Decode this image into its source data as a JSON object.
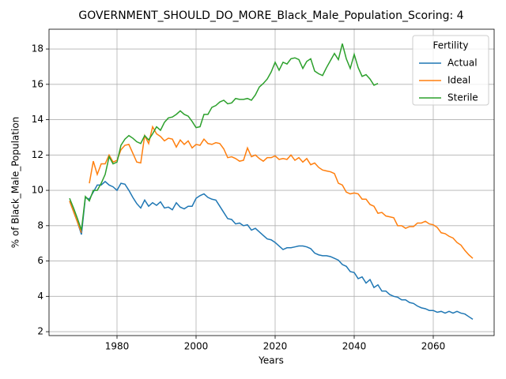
{
  "chart_data": {
    "type": "line",
    "title": "GOVERNMENT_SHOULD_DO_MORE_Black_Male_Population_Scoring: 4",
    "xlabel": "Years",
    "ylabel": "% of Black_Male_Population",
    "legend_title": "Fertility",
    "legend": "upper right",
    "grid": true,
    "xlim": [
      1962.8,
      2075.4
    ],
    "ylim": [
      1.78,
      19.12
    ],
    "xticks": [
      1980,
      2000,
      2020,
      2040,
      2060
    ],
    "yticks": [
      2,
      4,
      6,
      8,
      10,
      12,
      14,
      16,
      18
    ],
    "x": [
      1968,
      1969,
      1970,
      1971,
      1972,
      1973,
      1974,
      1975,
      1976,
      1977,
      1978,
      1979,
      1980,
      1981,
      1982,
      1983,
      1984,
      1985,
      1986,
      1987,
      1988,
      1989,
      1990,
      1991,
      1992,
      1993,
      1994,
      1995,
      1996,
      1997,
      1998,
      1999,
      2000,
      2001,
      2002,
      2003,
      2004,
      2005,
      2006,
      2007,
      2008,
      2009,
      2010,
      2011,
      2012,
      2013,
      2014,
      2015,
      2016,
      2017,
      2018,
      2019,
      2020,
      2021,
      2022,
      2023,
      2024,
      2025,
      2026,
      2027,
      2028,
      2029,
      2030,
      2031,
      2032,
      2033,
      2034,
      2035,
      2036,
      2037,
      2038,
      2039,
      2040,
      2041,
      2042,
      2043,
      2044,
      2045,
      2046,
      2047,
      2048,
      2049,
      2050,
      2051,
      2052,
      2053,
      2054,
      2055,
      2056,
      2057,
      2058,
      2059,
      2060,
      2061,
      2062,
      2063,
      2064,
      2065,
      2066,
      2067,
      2068,
      2069,
      2070
    ],
    "series": [
      {
        "name": "Actual",
        "color": "#1f77b4",
        "values": [
          9.4,
          8.8,
          8.2,
          7.5,
          9.6,
          9.5,
          9.9,
          10.3,
          10.3,
          10.5,
          10.3,
          10.2,
          10.0,
          10.4,
          10.35,
          10.0,
          9.6,
          9.25,
          9.0,
          9.45,
          9.1,
          9.3,
          9.15,
          9.35,
          9.0,
          9.05,
          8.9,
          9.3,
          9.05,
          8.95,
          9.1,
          9.1,
          9.55,
          9.7,
          9.8,
          9.6,
          9.5,
          9.45,
          9.1,
          8.75,
          8.4,
          8.35,
          8.1,
          8.15,
          8.0,
          8.05,
          7.75,
          7.85,
          7.65,
          7.45,
          7.25,
          7.2,
          7.05,
          6.85,
          6.65,
          6.75,
          6.75,
          6.8,
          6.85,
          6.85,
          6.8,
          6.7,
          6.45,
          6.35,
          6.3,
          6.3,
          6.25,
          6.15,
          6.05,
          5.8,
          5.7,
          5.4,
          5.35,
          5.0,
          5.1,
          4.75,
          4.95,
          4.5,
          4.65,
          4.3,
          4.3,
          4.1,
          4.0,
          3.95,
          3.8,
          3.8,
          3.65,
          3.6,
          3.45,
          3.35,
          3.3,
          3.2,
          3.2,
          3.1,
          3.15,
          3.05,
          3.15,
          3.05,
          3.15,
          3.05,
          3.0,
          2.85,
          2.7
        ]
      },
      {
        "name": "Ideal",
        "color": "#ff7f0e",
        "values": [
          9.4,
          8.8,
          8.2,
          7.6,
          null,
          10.4,
          11.65,
          10.9,
          11.5,
          11.5,
          12.0,
          11.6,
          11.7,
          12.3,
          12.55,
          12.6,
          12.1,
          11.6,
          11.55,
          13.1,
          12.65,
          13.6,
          13.2,
          13.05,
          12.8,
          12.95,
          12.9,
          12.45,
          12.85,
          12.6,
          12.8,
          12.4,
          12.6,
          12.55,
          12.9,
          12.65,
          12.6,
          12.7,
          12.65,
          12.35,
          11.85,
          11.9,
          11.8,
          11.65,
          11.7,
          12.4,
          11.9,
          12.0,
          11.8,
          11.65,
          11.85,
          11.85,
          11.95,
          11.75,
          11.8,
          11.75,
          12.0,
          11.7,
          11.85,
          11.6,
          11.8,
          11.45,
          11.55,
          11.3,
          11.15,
          11.1,
          11.05,
          10.95,
          10.4,
          10.3,
          9.9,
          9.8,
          9.85,
          9.8,
          9.5,
          9.5,
          9.2,
          9.1,
          8.7,
          8.75,
          8.55,
          8.5,
          8.45,
          8.0,
          8.0,
          7.85,
          7.95,
          7.95,
          8.15,
          8.15,
          8.25,
          8.1,
          8.05,
          7.9,
          7.6,
          7.55,
          7.4,
          7.3,
          7.05,
          6.9,
          6.6,
          6.35,
          6.15
        ]
      },
      {
        "name": "Sterile",
        "color": "#2ca02c",
        "values": [
          9.55,
          9.0,
          8.4,
          7.75,
          9.65,
          9.4,
          10.0,
          10.0,
          10.4,
          10.9,
          11.9,
          11.5,
          11.6,
          12.55,
          12.9,
          13.1,
          12.95,
          12.75,
          12.65,
          13.1,
          12.85,
          13.2,
          13.6,
          13.4,
          13.85,
          14.1,
          14.15,
          14.3,
          14.5,
          14.3,
          14.2,
          13.9,
          13.55,
          13.6,
          14.3,
          14.3,
          14.7,
          14.8,
          15.0,
          15.1,
          14.9,
          14.95,
          15.2,
          15.15,
          15.15,
          15.2,
          15.1,
          15.4,
          15.85,
          16.05,
          16.3,
          16.7,
          17.25,
          16.8,
          17.25,
          17.15,
          17.45,
          17.5,
          17.4,
          16.9,
          17.3,
          17.45,
          16.75,
          16.6,
          16.5,
          16.95,
          17.35,
          17.75,
          17.4,
          18.3,
          17.45,
          16.9,
          17.7,
          16.95,
          16.45,
          16.55,
          16.3,
          15.95,
          16.05,
          null,
          null,
          null,
          null,
          null,
          null,
          null,
          null,
          null,
          null,
          null,
          null,
          null,
          null,
          null,
          null,
          null,
          null,
          null,
          null,
          null,
          null,
          null,
          null
        ]
      }
    ]
  }
}
